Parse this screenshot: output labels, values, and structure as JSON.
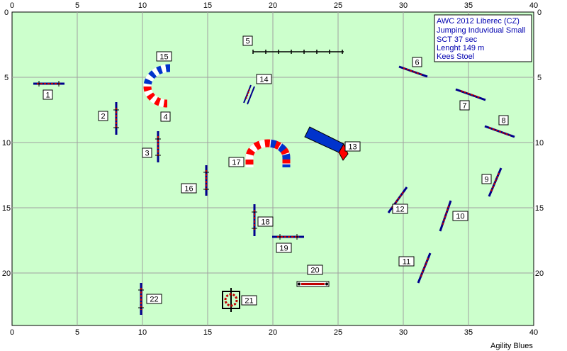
{
  "course": {
    "axis": {
      "x_ticks": [
        "0",
        "5",
        "10",
        "15",
        "20",
        "25",
        "30",
        "35",
        "40"
      ],
      "y_ticks": [
        "0",
        "5",
        "10",
        "15",
        "20"
      ]
    },
    "info": [
      "AWC 2012 Liberec (CZ)",
      "Jumping Induvidual Small",
      "SCT 37 sec",
      "Lenght 149 m",
      "Kees Stoel"
    ],
    "credit": "Agility Blues",
    "obstacles": [
      {
        "label": "1",
        "type": "jump",
        "x": 2.7,
        "y": 5.5
      },
      {
        "label": "2",
        "type": "jump",
        "x": 8.0,
        "y": 8.2
      },
      {
        "label": "3",
        "type": "jump",
        "x": 11.1,
        "y": 10.3
      },
      {
        "label": "4",
        "type": "tunnel-end",
        "x": 11.3,
        "y": 7.0
      },
      {
        "label": "5",
        "type": "weave",
        "x": 22.0,
        "y": 3.0
      },
      {
        "label": "6",
        "type": "jump",
        "x": 30.7,
        "y": 4.6
      },
      {
        "label": "7",
        "type": "jump",
        "x": 35.6,
        "y": 6.4
      },
      {
        "label": "8",
        "type": "jump",
        "x": 37.0,
        "y": 9.0
      },
      {
        "label": "9",
        "type": "jump",
        "x": 36.9,
        "y": 13.0
      },
      {
        "label": "10",
        "type": "jump",
        "x": 33.5,
        "y": 15.6
      },
      {
        "label": "11",
        "type": "jump",
        "x": 31.8,
        "y": 19.5
      },
      {
        "label": "12",
        "type": "jump",
        "x": 29.9,
        "y": 14.2
      },
      {
        "label": "13",
        "type": "chute",
        "x": 24.0,
        "y": 10.0
      },
      {
        "label": "14",
        "type": "double",
        "x": 18.2,
        "y": 6.4
      },
      {
        "label": "15",
        "type": "tunnel",
        "x": 11.0,
        "y": 6.0
      },
      {
        "label": "16",
        "type": "jump",
        "x": 15.0,
        "y": 12.9
      },
      {
        "label": "17",
        "type": "tunnel",
        "x": 19.7,
        "y": 11.0
      },
      {
        "label": "18",
        "type": "jump",
        "x": 18.5,
        "y": 16.2
      },
      {
        "label": "19",
        "type": "jump",
        "x": 20.5,
        "y": 17.4
      },
      {
        "label": "20",
        "type": "long",
        "x": 23.0,
        "y": 20.8
      },
      {
        "label": "21",
        "type": "tyre",
        "x": 16.8,
        "y": 22.1
      },
      {
        "label": "22",
        "type": "jump",
        "x": 10.0,
        "y": 21.9
      }
    ],
    "colors": {
      "field": "#ccffcc",
      "grid": "#a0a0a0",
      "jump_pole": "#c00000",
      "wing": "#00008b",
      "tunnel_red": "#ff0000",
      "tunnel_blue": "#0033cc",
      "label_border": "#000000"
    }
  }
}
